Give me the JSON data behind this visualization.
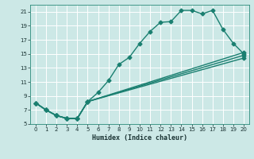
{
  "title": "",
  "xlabel": "Humidex (Indice chaleur)",
  "bg_color": "#cce8e6",
  "grid_color": "#ffffff",
  "line_color": "#1a7f70",
  "markersize": 2.5,
  "linewidth": 1.0,
  "xlim": [
    -0.5,
    20.5
  ],
  "ylim": [
    5,
    22
  ],
  "xticks": [
    0,
    1,
    2,
    3,
    4,
    5,
    6,
    7,
    8,
    9,
    10,
    11,
    12,
    13,
    14,
    15,
    16,
    17,
    18,
    19,
    20
  ],
  "yticks": [
    5,
    7,
    9,
    11,
    13,
    15,
    17,
    19,
    21
  ],
  "curve1_x": [
    0,
    1,
    2,
    3,
    4,
    5,
    6,
    7,
    8,
    9,
    10,
    11,
    12,
    13,
    14,
    15,
    16,
    17,
    18,
    19,
    20
  ],
  "curve1_y": [
    8.0,
    7.0,
    6.2,
    5.8,
    5.8,
    8.2,
    9.5,
    11.2,
    13.5,
    14.5,
    16.5,
    18.2,
    19.5,
    19.6,
    21.2,
    21.2,
    20.7,
    21.2,
    18.5,
    16.5,
    15.0
  ],
  "curve2_x": [
    0,
    1,
    2,
    3,
    4,
    5,
    20
  ],
  "curve2_y": [
    8.0,
    7.0,
    6.2,
    5.8,
    5.8,
    8.2,
    15.2
  ],
  "curve3_x": [
    0,
    1,
    2,
    3,
    4,
    5,
    20
  ],
  "curve3_y": [
    8.0,
    7.0,
    6.2,
    5.8,
    5.8,
    8.2,
    14.8
  ],
  "curve4_x": [
    0,
    1,
    2,
    3,
    4,
    5,
    20
  ],
  "curve4_y": [
    8.0,
    7.0,
    6.2,
    5.8,
    5.8,
    8.2,
    14.4
  ]
}
